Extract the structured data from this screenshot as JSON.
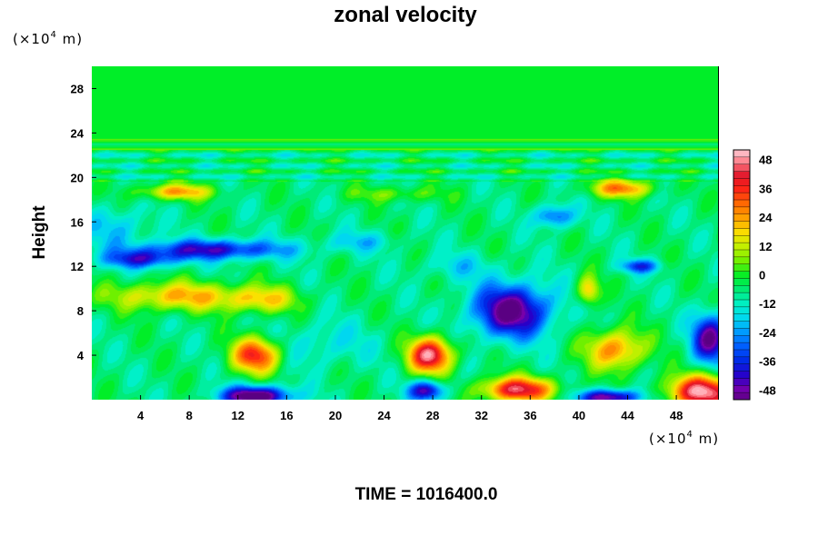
{
  "chart_data": {
    "type": "heatmap",
    "title": "zonal velocity",
    "ylabel": "Height",
    "x_unit_prefix": "(×10",
    "x_unit_exp": "4",
    "x_unit_suffix": " m)",
    "y_unit_prefix": "(×10",
    "y_unit_exp": "4",
    "y_unit_suffix": " m)",
    "xlim": [
      0,
      51.5
    ],
    "ylim": [
      0,
      30
    ],
    "x_ticks": [
      4,
      8,
      12,
      16,
      20,
      24,
      28,
      32,
      36,
      40,
      44,
      48
    ],
    "x_tick_labels": [
      "4",
      "8",
      "12",
      "16",
      "20",
      "24",
      "28",
      "32",
      "36",
      "40",
      "44",
      "48"
    ],
    "y_ticks": [
      4,
      8,
      12,
      16,
      20,
      24,
      28
    ],
    "y_tick_labels": [
      "4",
      "8",
      "12",
      "16",
      "20",
      "24",
      "28"
    ],
    "colorbar": {
      "min": -52,
      "max": 52,
      "tick_values": [
        -48,
        -36,
        -24,
        -12,
        0,
        12,
        24,
        36,
        48
      ],
      "tick_labels": [
        "-48",
        "-36",
        "-24",
        "-12",
        "0",
        "12",
        "24",
        "36",
        "48"
      ]
    },
    "features": [
      {
        "x": 7,
        "y": 9.3,
        "sx": 5.5,
        "sy": 1.3,
        "value": 28
      },
      {
        "x": 14,
        "y": 9,
        "sx": 3,
        "sy": 1.2,
        "value": 22
      },
      {
        "x": 13.5,
        "y": 4,
        "sx": 2,
        "sy": 1.6,
        "value": 44
      },
      {
        "x": 27.8,
        "y": 4,
        "sx": 1.8,
        "sy": 1.6,
        "value": 54
      },
      {
        "x": 13.5,
        "y": 0.3,
        "sx": 2.8,
        "sy": 0.9,
        "value": -54
      },
      {
        "x": 27.5,
        "y": 0.8,
        "sx": 1.5,
        "sy": 0.9,
        "value": -40
      },
      {
        "x": 35,
        "y": 0.9,
        "sx": 3,
        "sy": 1.1,
        "value": 50
      },
      {
        "x": 42.5,
        "y": 0.2,
        "sx": 2.5,
        "sy": 0.7,
        "value": -46
      },
      {
        "x": 50.2,
        "y": 0.7,
        "sx": 2.8,
        "sy": 1.5,
        "value": 56
      },
      {
        "x": 34.5,
        "y": 8,
        "sx": 3.2,
        "sy": 2.4,
        "value": -48
      },
      {
        "x": 43,
        "y": 4.5,
        "sx": 2.4,
        "sy": 1.8,
        "value": 34
      },
      {
        "x": 50.8,
        "y": 5.5,
        "sx": 1.5,
        "sy": 2.2,
        "value": -44
      },
      {
        "x": 10,
        "y": 13.5,
        "sx": 6,
        "sy": 0.9,
        "value": -36
      },
      {
        "x": 4,
        "y": 12.6,
        "sx": 3,
        "sy": 0.8,
        "value": -30
      },
      {
        "x": 7,
        "y": 18.7,
        "sx": 3,
        "sy": 0.7,
        "value": 30
      },
      {
        "x": 43.5,
        "y": 19,
        "sx": 2.5,
        "sy": 0.8,
        "value": 34
      },
      {
        "x": 38,
        "y": 16.5,
        "sx": 1.6,
        "sy": 1,
        "value": -26
      },
      {
        "x": 25,
        "y": 18.5,
        "sx": 4,
        "sy": 0.7,
        "value": 12
      },
      {
        "x": 45,
        "y": 12,
        "sx": 1.6,
        "sy": 0.6,
        "value": -28
      },
      {
        "x": 22,
        "y": 14.2,
        "sx": 3,
        "sy": 0.9,
        "value": -12
      },
      {
        "x": 2,
        "y": 15.5,
        "sx": 2.5,
        "sy": 1.8,
        "value": -14
      },
      {
        "x": 19,
        "y": 5,
        "sx": 4,
        "sy": 2,
        "value": -10
      },
      {
        "x": 30,
        "y": 12,
        "sx": 3,
        "sy": 1.2,
        "value": -10
      },
      {
        "x": 40.8,
        "y": 9.8,
        "sx": 0.9,
        "sy": 1.3,
        "value": 28
      }
    ]
  },
  "footer": {
    "time_text": "TIME = 1016400.0"
  }
}
